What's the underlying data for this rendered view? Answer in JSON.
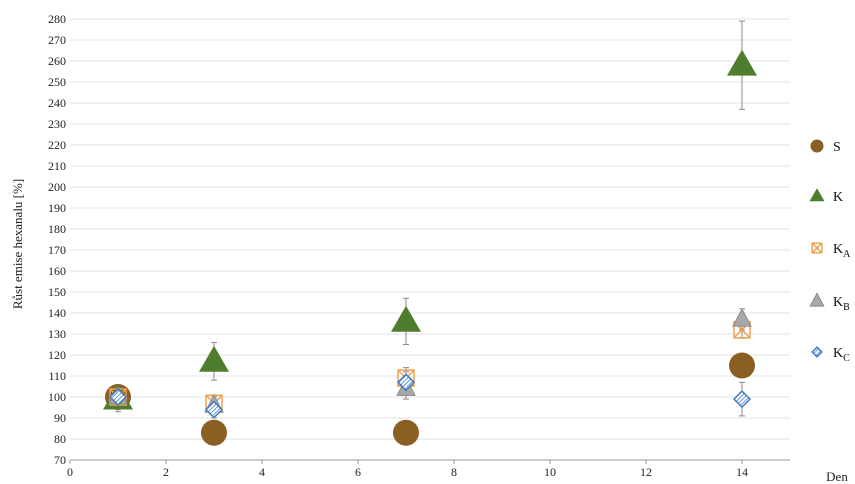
{
  "chart_data": {
    "type": "scatter",
    "title": "",
    "xlabel": "Den",
    "ylabel": "Růst emise hexanalu [%]",
    "xlim": [
      0,
      15
    ],
    "ylim": [
      70,
      280
    ],
    "x_ticks": [
      0,
      2,
      4,
      6,
      8,
      10,
      12,
      14
    ],
    "y_ticks": [
      70,
      80,
      90,
      100,
      110,
      120,
      130,
      140,
      150,
      160,
      170,
      180,
      190,
      200,
      210,
      220,
      230,
      240,
      250,
      260,
      270,
      280
    ],
    "grid": true,
    "legend_position": "right",
    "series": [
      {
        "name": "S",
        "label_main": "S",
        "label_sub": "",
        "marker": "circle",
        "color": "#8B5E24",
        "points": [
          {
            "x": 1,
            "y": 100,
            "err": 3
          },
          {
            "x": 3,
            "y": 83,
            "err": 0
          },
          {
            "x": 7,
            "y": 83,
            "err": 0
          },
          {
            "x": 14,
            "y": 115,
            "err": 0
          }
        ]
      },
      {
        "name": "K",
        "label_main": "K",
        "label_sub": "",
        "marker": "triangle",
        "color": "#4E7D2D",
        "points": [
          {
            "x": 1,
            "y": 99,
            "err": 6
          },
          {
            "x": 3,
            "y": 117,
            "err": 9
          },
          {
            "x": 7,
            "y": 136,
            "err": 11
          },
          {
            "x": 14,
            "y": 258,
            "err": 21
          }
        ]
      },
      {
        "name": "KA",
        "label_main": "K",
        "label_sub": "A",
        "marker": "square-x",
        "color": "#F0A050",
        "points": [
          {
            "x": 1,
            "y": 100,
            "err": 3
          },
          {
            "x": 3,
            "y": 97,
            "err": 4
          },
          {
            "x": 7,
            "y": 109,
            "err": 5
          },
          {
            "x": 14,
            "y": 132,
            "err": 4
          }
        ]
      },
      {
        "name": "KB",
        "label_main": "K",
        "label_sub": "B",
        "marker": "triangle-small",
        "color": "#A8A8A8",
        "points": [
          {
            "x": 1,
            "y": 100,
            "err": 3
          },
          {
            "x": 3,
            "y": 96,
            "err": 4
          },
          {
            "x": 7,
            "y": 104,
            "err": 5
          },
          {
            "x": 14,
            "y": 137,
            "err": 5
          }
        ]
      },
      {
        "name": "KC",
        "label_main": "K",
        "label_sub": "C",
        "marker": "diamond",
        "color": "#3E7BC4",
        "points": [
          {
            "x": 1,
            "y": 100,
            "err": 3
          },
          {
            "x": 3,
            "y": 94,
            "err": 4
          },
          {
            "x": 7,
            "y": 107,
            "err": 5
          },
          {
            "x": 14,
            "y": 99,
            "err": 8
          }
        ]
      }
    ]
  }
}
